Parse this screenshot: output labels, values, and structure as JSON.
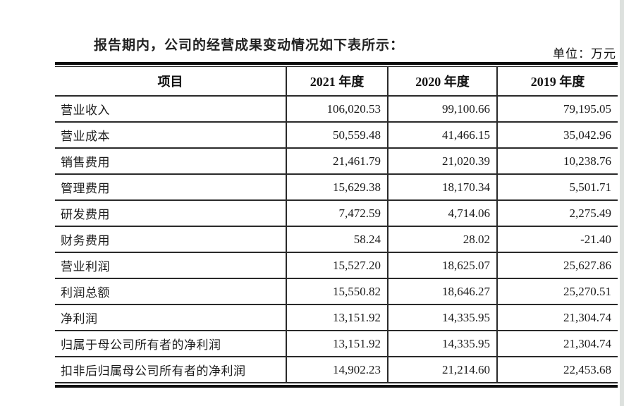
{
  "document": {
    "intro_text": "报告期内，公司的经营成果变动情况如下表所示：",
    "unit_label": "单位：万元"
  },
  "table": {
    "columns": [
      "项目",
      "2021 年度",
      "2020 年度",
      "2019 年度"
    ],
    "rows": [
      {
        "label": "营业收入",
        "values": [
          "106,020.53",
          "99,100.66",
          "79,195.05"
        ]
      },
      {
        "label": "营业成本",
        "values": [
          "50,559.48",
          "41,466.15",
          "35,042.96"
        ]
      },
      {
        "label": "销售费用",
        "values": [
          "21,461.79",
          "21,020.39",
          "10,238.76"
        ]
      },
      {
        "label": "管理费用",
        "values": [
          "15,629.38",
          "18,170.34",
          "5,501.71"
        ]
      },
      {
        "label": "研发费用",
        "values": [
          "7,472.59",
          "4,714.06",
          "2,275.49"
        ]
      },
      {
        "label": "财务费用",
        "values": [
          "58.24",
          "28.02",
          "-21.40"
        ]
      },
      {
        "label": "营业利润",
        "values": [
          "15,527.20",
          "18,625.07",
          "25,627.86"
        ]
      },
      {
        "label": "利润总额",
        "values": [
          "15,550.82",
          "18,646.27",
          "25,270.51"
        ]
      },
      {
        "label": "净利润",
        "values": [
          "13,151.92",
          "14,335.95",
          "21,304.74"
        ]
      },
      {
        "label": "归属于母公司所有者的净利润",
        "values": [
          "13,151.92",
          "14,335.95",
          "21,304.74"
        ]
      },
      {
        "label": "扣非后归属母公司所有者的净利润",
        "values": [
          "14,902.23",
          "21,214.60",
          "22,453.68"
        ]
      }
    ]
  }
}
